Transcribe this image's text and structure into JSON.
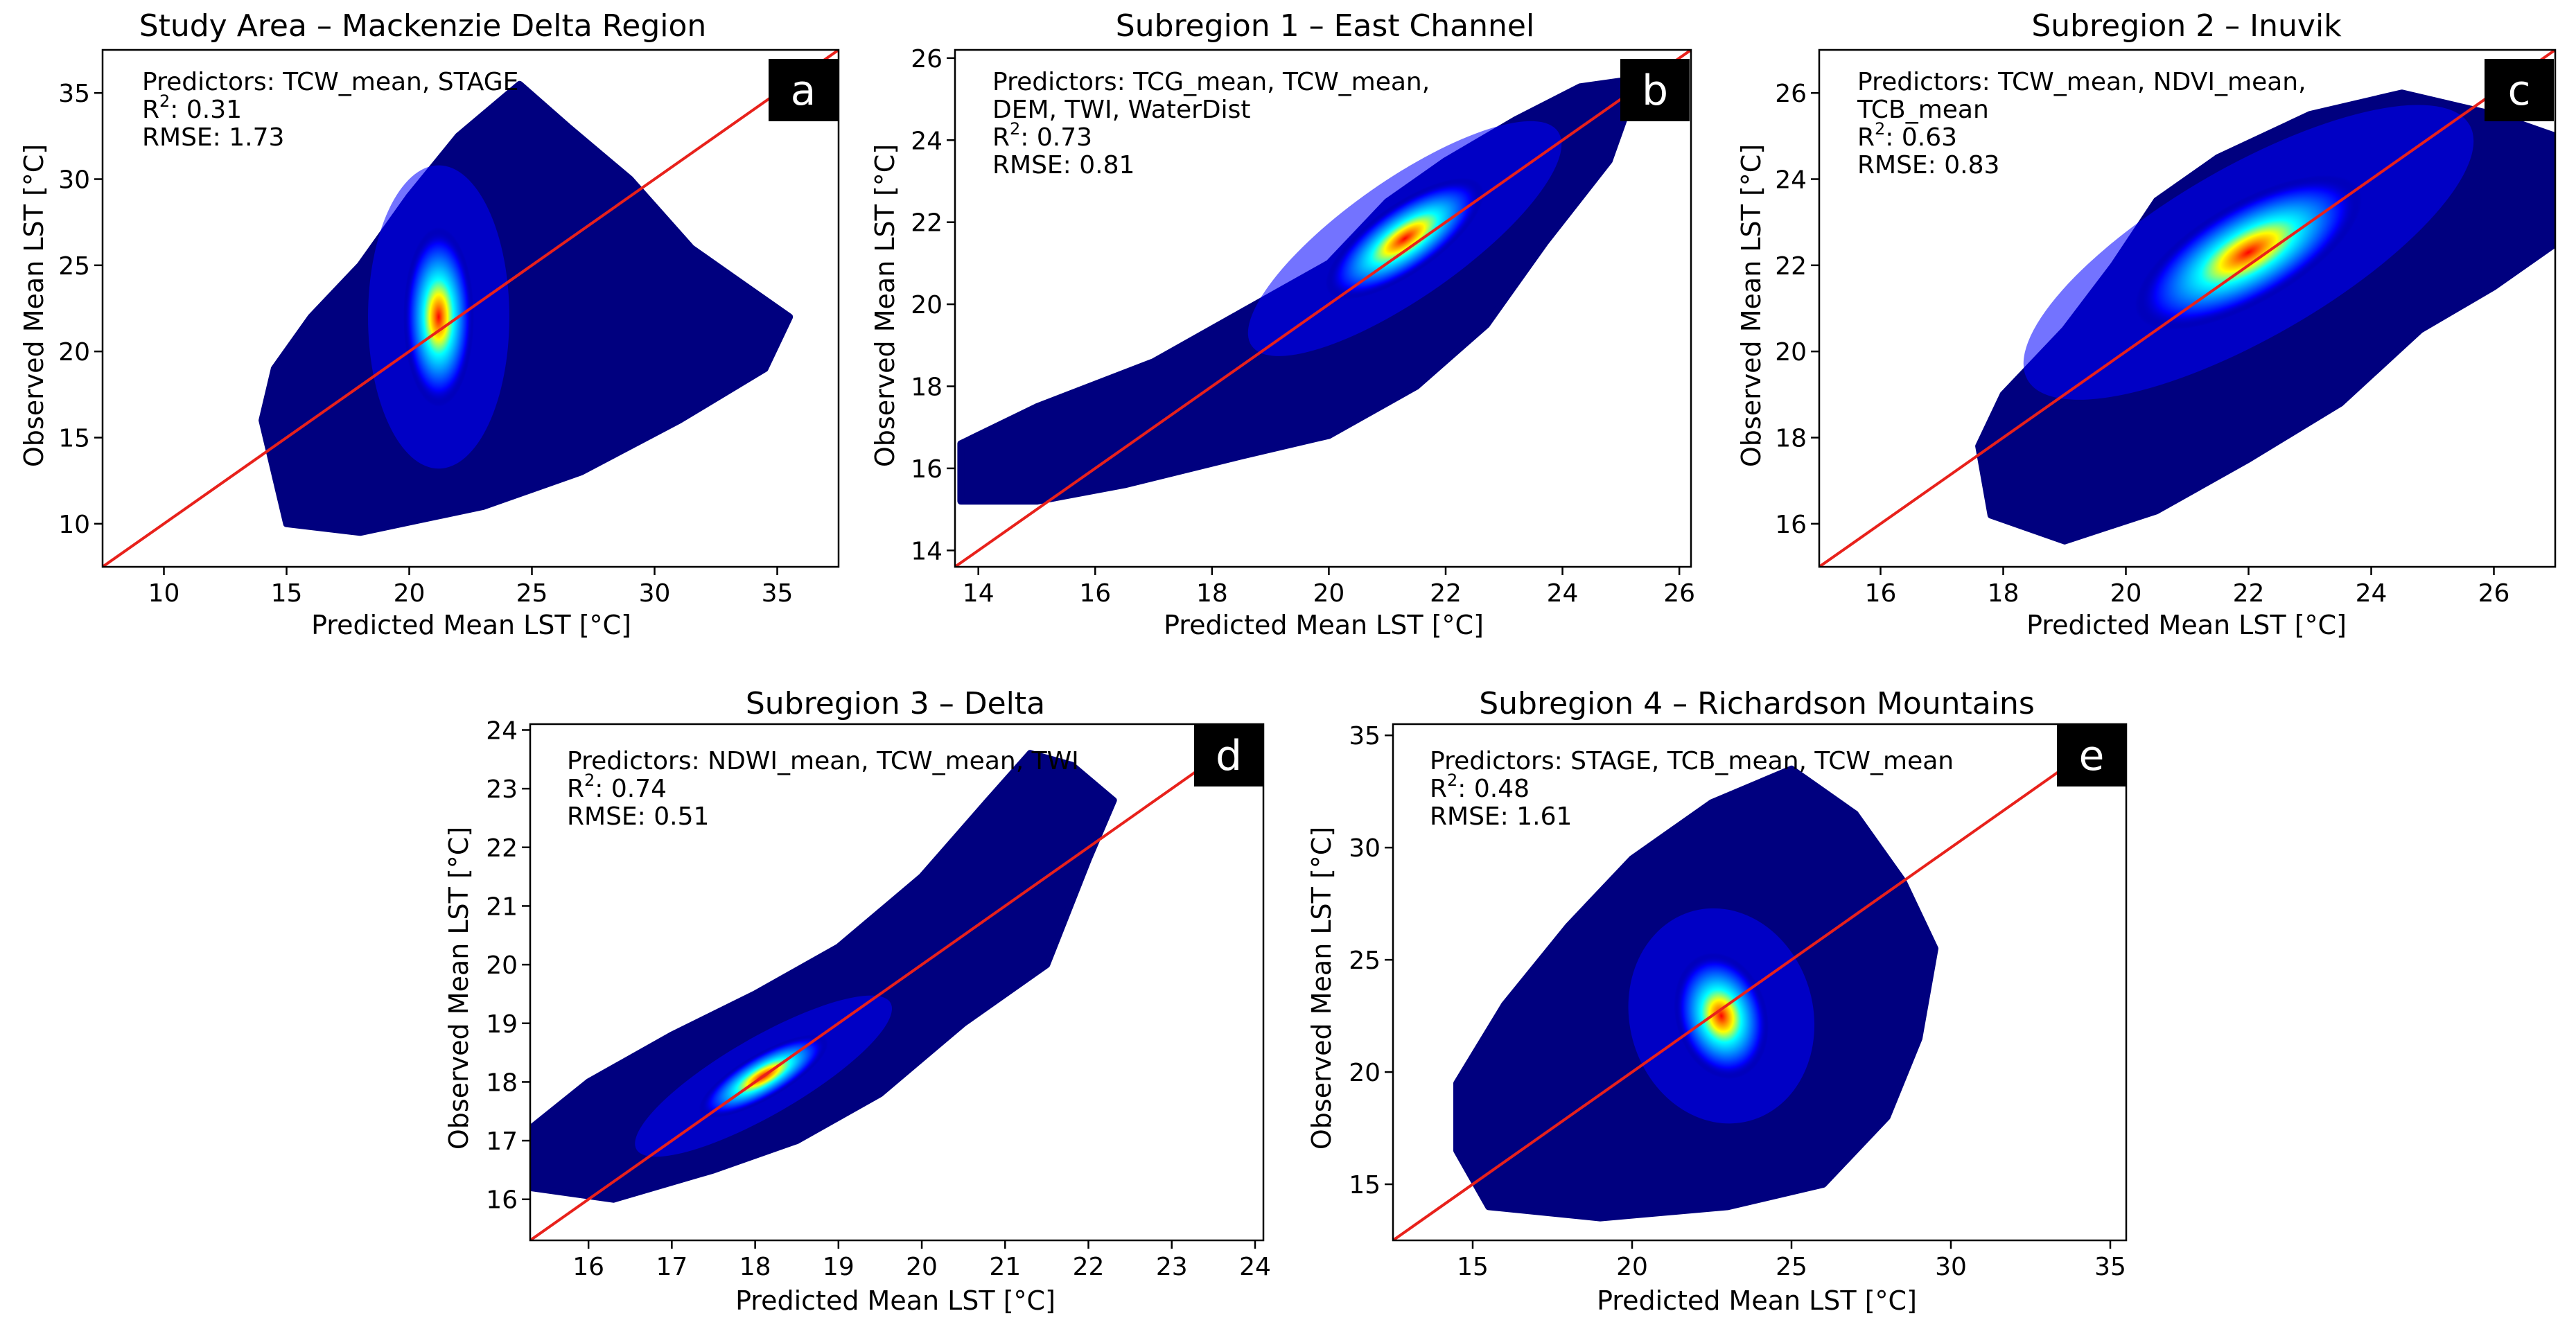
{
  "figure": {
    "background": "#ffffff",
    "colormap": [
      "#00007f",
      "#0000ff",
      "#0080ff",
      "#00ffff",
      "#ffff00",
      "#ff7f00",
      "#ff0000",
      "#7f0000"
    ],
    "fit_line_color": "#e8211b",
    "letter_box_color": "#000000"
  },
  "chart_data": [
    {
      "panel": "a",
      "type": "scatter",
      "title": "Study Area – Mackenzie Delta Region",
      "xlabel": "Predicted Mean LST [°C]",
      "ylabel": "Observed Mean LST [°C]",
      "xlim": [
        7.5,
        37.5
      ],
      "ylim": [
        7.5,
        37.5
      ],
      "xticks": [
        10,
        15,
        20,
        25,
        30,
        35
      ],
      "yticks": [
        10,
        15,
        20,
        25,
        30,
        35
      ],
      "annotations": {
        "predictors_lines": [
          "Predictors: TCW_mean, STAGE"
        ],
        "r2_label": "R",
        "r2_sup": "2",
        "r2_value": ": 0.31",
        "rmse": "RMSE: 1.73"
      },
      "fit_line": [
        [
          7.5,
          7.5
        ],
        [
          37.5,
          37.5
        ]
      ],
      "density": {
        "center": [
          21.2,
          22.0
        ],
        "cloud_polygon": [
          [
            15.0,
            10.0
          ],
          [
            14.5,
            13.0
          ],
          [
            14.0,
            16.0
          ],
          [
            14.5,
            19.0
          ],
          [
            16.0,
            22.0
          ],
          [
            18.0,
            25.0
          ],
          [
            20.0,
            29.0
          ],
          [
            22.0,
            32.5
          ],
          [
            24.5,
            35.5
          ],
          [
            26.5,
            33.0
          ],
          [
            29.0,
            30.0
          ],
          [
            31.5,
            26.0
          ],
          [
            33.5,
            24.0
          ],
          [
            35.5,
            22.0
          ],
          [
            34.5,
            19.0
          ],
          [
            31.0,
            16.0
          ],
          [
            27.0,
            13.0
          ],
          [
            23.0,
            11.0
          ],
          [
            18.0,
            9.5
          ]
        ],
        "core_rx": 0.9,
        "core_ry": 4.0,
        "rotation": 0
      }
    },
    {
      "panel": "b",
      "type": "scatter",
      "title": "Subregion 1 – East Channel",
      "xlabel": "Predicted Mean LST [°C]",
      "ylabel": "Observed Mean LST [°C]",
      "xlim": [
        13.6,
        26.2
      ],
      "ylim": [
        13.6,
        26.2
      ],
      "xticks": [
        14,
        16,
        18,
        20,
        22,
        24,
        26
      ],
      "yticks": [
        14,
        16,
        18,
        20,
        22,
        24,
        26
      ],
      "annotations": {
        "predictors_lines": [
          "Predictors: TCG_mean, TCW_mean,",
          "DEM, TWI, WaterDist"
        ],
        "r2_label": "R",
        "r2_sup": "2",
        "r2_value": ": 0.73",
        "rmse": "RMSE: 0.81"
      },
      "fit_line": [
        [
          13.6,
          13.6
        ],
        [
          26.2,
          26.2
        ]
      ],
      "density": {
        "center": [
          21.3,
          21.6
        ],
        "cloud_polygon": [
          [
            13.7,
            15.2
          ],
          [
            13.7,
            16.6
          ],
          [
            15.0,
            17.5
          ],
          [
            17.0,
            18.6
          ],
          [
            18.5,
            19.8
          ],
          [
            20.0,
            21.0
          ],
          [
            21.0,
            22.5
          ],
          [
            22.0,
            23.5
          ],
          [
            23.2,
            24.5
          ],
          [
            24.3,
            25.3
          ],
          [
            25.3,
            25.5
          ],
          [
            24.8,
            23.5
          ],
          [
            23.7,
            21.5
          ],
          [
            22.7,
            19.5
          ],
          [
            21.5,
            18.0
          ],
          [
            20.0,
            16.8
          ],
          [
            18.5,
            16.3
          ],
          [
            16.5,
            15.6
          ],
          [
            15.0,
            15.2
          ]
        ],
        "core_rx": 1.0,
        "core_ry": 0.65,
        "rotation": -35
      }
    },
    {
      "panel": "c",
      "type": "scatter",
      "title": "Subregion 2 – Inuvik",
      "xlabel": "Predicted Mean LST [°C]",
      "ylabel": "Observed Mean LST [°C]",
      "xlim": [
        15.0,
        27.0
      ],
      "ylim": [
        15.0,
        27.0
      ],
      "xticks": [
        16,
        18,
        20,
        22,
        24,
        26
      ],
      "yticks": [
        16,
        18,
        20,
        22,
        24,
        26
      ],
      "annotations": {
        "predictors_lines": [
          "Predictors: TCW_mean, NDVI_mean,",
          "TCB_mean"
        ],
        "r2_label": "R",
        "r2_sup": "2",
        "r2_value": ": 0.63",
        "rmse": "RMSE: 0.83"
      },
      "fit_line": [
        [
          15.0,
          15.0
        ],
        [
          27.0,
          27.0
        ]
      ],
      "density": {
        "center": [
          22.0,
          22.3
        ],
        "cloud_polygon": [
          [
            17.8,
            16.2
          ],
          [
            17.6,
            17.8
          ],
          [
            18.0,
            19.0
          ],
          [
            19.0,
            20.5
          ],
          [
            19.8,
            22.0
          ],
          [
            20.5,
            23.5
          ],
          [
            21.5,
            24.5
          ],
          [
            23.0,
            25.5
          ],
          [
            24.5,
            26.0
          ],
          [
            26.0,
            25.5
          ],
          [
            27.0,
            25.0
          ],
          [
            27.0,
            22.5
          ],
          [
            26.0,
            21.5
          ],
          [
            24.8,
            20.5
          ],
          [
            23.5,
            18.8
          ],
          [
            22.0,
            17.5
          ],
          [
            20.5,
            16.3
          ],
          [
            19.0,
            15.6
          ]
        ],
        "core_rx": 1.3,
        "core_ry": 0.9,
        "rotation": -30
      }
    },
    {
      "panel": "d",
      "type": "scatter",
      "title": "Subregion 3 – Delta",
      "xlabel": "Predicted Mean LST [°C]",
      "ylabel": "Observed Mean LST [°C]",
      "xlim": [
        15.3,
        24.1
      ],
      "ylim": [
        15.3,
        24.1
      ],
      "xticks": [
        16,
        17,
        18,
        19,
        20,
        21,
        22,
        23,
        24
      ],
      "yticks": [
        16,
        17,
        18,
        19,
        20,
        21,
        22,
        23,
        24
      ],
      "annotations": {
        "predictors_lines": [
          "Predictors: NDWI_mean, TCW_mean, TWI"
        ],
        "r2_label": "R",
        "r2_sup": "2",
        "r2_value": ": 0.74",
        "rmse": "RMSE: 0.51"
      },
      "fit_line": [
        [
          15.3,
          15.3
        ],
        [
          24.1,
          24.1
        ]
      ],
      "density": {
        "center": [
          18.1,
          18.1
        ],
        "cloud_polygon": [
          [
            15.3,
            16.2
          ],
          [
            15.3,
            17.2
          ],
          [
            16.0,
            18.0
          ],
          [
            17.0,
            18.8
          ],
          [
            18.0,
            19.5
          ],
          [
            19.0,
            20.3
          ],
          [
            20.0,
            21.5
          ],
          [
            20.8,
            22.8
          ],
          [
            21.3,
            23.6
          ],
          [
            21.8,
            23.4
          ],
          [
            22.3,
            22.8
          ],
          [
            22.0,
            21.8
          ],
          [
            21.5,
            20.0
          ],
          [
            20.5,
            19.0
          ],
          [
            19.5,
            17.8
          ],
          [
            18.5,
            17.0
          ],
          [
            17.5,
            16.5
          ],
          [
            16.3,
            16.0
          ]
        ],
        "core_rx": 0.55,
        "core_ry": 0.3,
        "rotation": -30
      }
    },
    {
      "panel": "e",
      "type": "scatter",
      "title": "Subregion 4 – Richardson Mountains",
      "xlabel": "Predicted Mean LST [°C]",
      "ylabel": "Observed Mean LST [°C]",
      "xlim": [
        12.5,
        35.5
      ],
      "ylim": [
        12.5,
        35.5
      ],
      "xticks": [
        15,
        20,
        25,
        30,
        35
      ],
      "yticks": [
        15,
        20,
        25,
        30,
        35
      ],
      "annotations": {
        "predictors_lines": [
          "Predictors: STAGE, TCB_mean, TCW_mean"
        ],
        "r2_label": "R",
        "r2_sup": "2",
        "r2_value": ": 0.48",
        "rmse": "RMSE: 1.61"
      },
      "fit_line": [
        [
          12.5,
          12.5
        ],
        [
          35.5,
          35.5
        ]
      ],
      "density": {
        "center": [
          22.8,
          22.5
        ],
        "cloud_polygon": [
          [
            15.5,
            14.0
          ],
          [
            14.5,
            16.5
          ],
          [
            14.5,
            19.5
          ],
          [
            16.0,
            23.0
          ],
          [
            18.0,
            26.5
          ],
          [
            20.0,
            29.5
          ],
          [
            22.5,
            32.0
          ],
          [
            25.0,
            33.5
          ],
          [
            27.0,
            31.5
          ],
          [
            28.5,
            28.5
          ],
          [
            29.5,
            25.5
          ],
          [
            29.0,
            21.5
          ],
          [
            28.0,
            18.0
          ],
          [
            26.0,
            15.0
          ],
          [
            23.0,
            14.0
          ],
          [
            19.0,
            13.5
          ]
        ],
        "core_rx": 0.9,
        "core_ry": 2.2,
        "rotation": -15
      }
    }
  ]
}
